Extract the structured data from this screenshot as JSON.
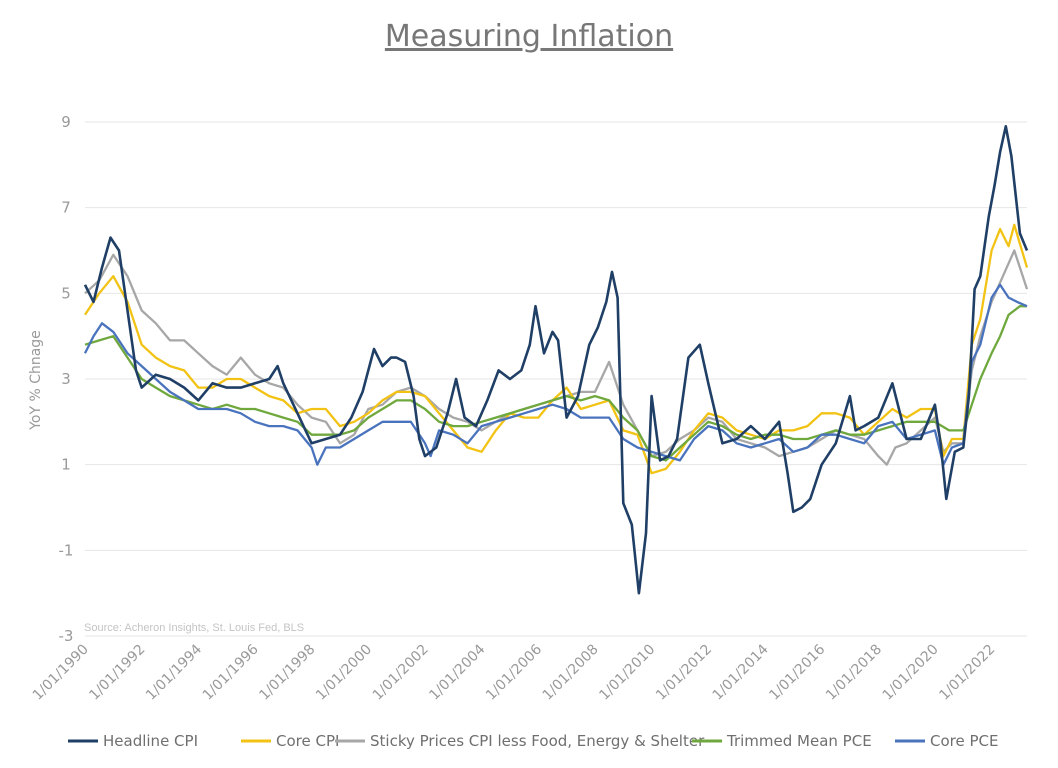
{
  "chart_data": {
    "type": "line",
    "title": "Measuring Inflation",
    "ylabel": "YoY % Chnage",
    "xlabel": "",
    "ylim": [
      -3,
      9
    ],
    "yticks": [
      -3,
      -1,
      1,
      3,
      5,
      7,
      9
    ],
    "xlim": [
      1990,
      2023.25
    ],
    "xticks": [
      "1/01/1990",
      "1/01/1992",
      "1/01/1994",
      "1/01/1996",
      "1/01/1998",
      "1/01/2000",
      "1/01/2002",
      "1/01/2004",
      "1/01/2006",
      "1/01/2008",
      "1/01/2010",
      "1/01/2012",
      "1/01/2014",
      "1/01/2016",
      "1/01/2018",
      "1/01/2020",
      "1/01/2022"
    ],
    "grid": "horizontal",
    "legend_position": "bottom",
    "source_note": "Source: Acheron Insights, St. Louis Fed, BLS",
    "series": [
      {
        "name": "Headline CPI",
        "color": "#1f3f66",
        "x": [
          1990,
          1990.3,
          1990.6,
          1990.9,
          1991.2,
          1991.5,
          1991.8,
          1992,
          1992.5,
          1993,
          1993.5,
          1994,
          1994.5,
          1995,
          1995.5,
          1996,
          1996.5,
          1996.8,
          1997,
          1997.5,
          1998,
          1998.5,
          1999,
          1999.4,
          1999.8,
          2000.2,
          2000.5,
          2000.8,
          2001,
          2001.3,
          2001.6,
          2001.8,
          2002,
          2002.4,
          2002.8,
          2003.1,
          2003.4,
          2003.8,
          2004.2,
          2004.6,
          2005,
          2005.4,
          2005.7,
          2005.9,
          2006.2,
          2006.5,
          2006.7,
          2007,
          2007.4,
          2007.8,
          2008.1,
          2008.4,
          2008.6,
          2008.8,
          2009,
          2009.3,
          2009.55,
          2009.8,
          2010,
          2010.3,
          2010.6,
          2010.9,
          2011.3,
          2011.7,
          2012,
          2012.5,
          2013,
          2013.5,
          2014,
          2014.5,
          2014.8,
          2015,
          2015.3,
          2015.6,
          2016,
          2016.5,
          2017,
          2017.2,
          2017.5,
          2018,
          2018.5,
          2019,
          2019.5,
          2020,
          2020.2,
          2020.4,
          2020.7,
          2021,
          2021.2,
          2021.4,
          2021.6,
          2021.9,
          2022.1,
          2022.3,
          2022.5,
          2022.7,
          2023,
          2023.25
        ],
        "values": [
          5.2,
          4.8,
          5.6,
          6.3,
          6.0,
          4.6,
          3.2,
          2.8,
          3.1,
          3.0,
          2.8,
          2.5,
          2.9,
          2.8,
          2.8,
          2.9,
          3.0,
          3.3,
          2.9,
          2.2,
          1.5,
          1.6,
          1.7,
          2.1,
          2.7,
          3.7,
          3.3,
          3.5,
          3.5,
          3.4,
          2.6,
          1.6,
          1.2,
          1.4,
          2.2,
          3.0,
          2.1,
          1.9,
          2.5,
          3.2,
          3.0,
          3.2,
          3.8,
          4.7,
          3.6,
          4.1,
          3.9,
          2.1,
          2.6,
          3.8,
          4.2,
          4.8,
          5.5,
          4.9,
          0.1,
          -0.4,
          -2.0,
          -0.6,
          2.6,
          1.1,
          1.2,
          1.6,
          3.5,
          3.8,
          2.9,
          1.5,
          1.6,
          1.9,
          1.6,
          2.0,
          0.8,
          -0.1,
          0.0,
          0.2,
          1.0,
          1.5,
          2.6,
          1.8,
          1.9,
          2.1,
          2.9,
          1.6,
          1.6,
          2.4,
          1.5,
          0.2,
          1.3,
          1.4,
          2.6,
          5.1,
          5.4,
          6.8,
          7.5,
          8.3,
          8.9,
          8.2,
          6.4,
          6.0
        ]
      },
      {
        "name": "Core CPI",
        "color": "#f2c314",
        "x": [
          1990,
          1990.5,
          1991,
          1991.5,
          1992,
          1992.5,
          1993,
          1993.5,
          1994,
          1994.5,
          1995,
          1995.5,
          1996,
          1996.5,
          1997,
          1997.5,
          1998,
          1998.5,
          1999,
          1999.5,
          2000,
          2000.5,
          2001,
          2001.5,
          2002,
          2002.5,
          2003,
          2003.5,
          2004,
          2004.5,
          2005,
          2005.5,
          2006,
          2006.5,
          2007,
          2007.5,
          2008,
          2008.5,
          2009,
          2009.5,
          2010,
          2010.5,
          2011,
          2011.5,
          2012,
          2012.5,
          2013,
          2013.5,
          2014,
          2014.5,
          2015,
          2015.5,
          2016,
          2016.5,
          2017,
          2017.5,
          2018,
          2018.5,
          2019,
          2019.5,
          2020,
          2020.3,
          2020.6,
          2021,
          2021.3,
          2021.6,
          2022,
          2022.3,
          2022.6,
          2022.8,
          2023.25
        ],
        "values": [
          4.5,
          5.0,
          5.4,
          4.8,
          3.8,
          3.5,
          3.3,
          3.2,
          2.8,
          2.8,
          3.0,
          3.0,
          2.8,
          2.6,
          2.5,
          2.2,
          2.3,
          2.3,
          1.9,
          2.0,
          2.2,
          2.5,
          2.7,
          2.7,
          2.6,
          2.2,
          1.8,
          1.4,
          1.3,
          1.8,
          2.2,
          2.1,
          2.1,
          2.5,
          2.8,
          2.3,
          2.4,
          2.5,
          1.8,
          1.7,
          0.8,
          0.9,
          1.3,
          1.8,
          2.2,
          2.1,
          1.8,
          1.7,
          1.6,
          1.8,
          1.8,
          1.9,
          2.2,
          2.2,
          2.1,
          1.7,
          2.0,
          2.3,
          2.1,
          2.3,
          2.3,
          1.2,
          1.6,
          1.6,
          3.8,
          4.4,
          6.0,
          6.5,
          6.1,
          6.6,
          5.6
        ]
      },
      {
        "name": "Sticky Prices CPI less Food, Energy & Shelter",
        "color": "#a7a7a7",
        "x": [
          1990,
          1990.5,
          1991,
          1991.5,
          1992,
          1992.5,
          1993,
          1993.5,
          1994,
          1994.5,
          1995,
          1995.5,
          1996,
          1996.5,
          1997,
          1997.5,
          1998,
          1998.5,
          1999,
          1999.5,
          2000,
          2000.5,
          2001,
          2001.5,
          2002,
          2002.5,
          2003,
          2003.5,
          2004,
          2004.5,
          2005,
          2005.5,
          2006,
          2006.5,
          2007,
          2007.5,
          2008,
          2008.5,
          2009,
          2009.5,
          2010,
          2010.5,
          2011,
          2011.5,
          2012,
          2012.5,
          2013,
          2013.5,
          2014,
          2014.5,
          2015,
          2015.5,
          2016,
          2016.5,
          2017,
          2017.5,
          2018,
          2018.3,
          2018.6,
          2019,
          2019.5,
          2020,
          2020.3,
          2020.6,
          2021,
          2021.3,
          2021.6,
          2022,
          2022.4,
          2022.8,
          2023.25
        ],
        "values": [
          5.0,
          5.3,
          5.9,
          5.4,
          4.6,
          4.3,
          3.9,
          3.9,
          3.6,
          3.3,
          3.1,
          3.5,
          3.1,
          2.9,
          2.8,
          2.4,
          2.1,
          2.0,
          1.5,
          1.7,
          2.3,
          2.4,
          2.7,
          2.8,
          2.6,
          2.3,
          2.1,
          2.0,
          1.8,
          2.0,
          2.2,
          2.3,
          2.4,
          2.5,
          2.6,
          2.7,
          2.7,
          3.4,
          2.4,
          1.8,
          1.2,
          1.3,
          1.6,
          1.8,
          2.1,
          2.0,
          1.6,
          1.5,
          1.4,
          1.2,
          1.3,
          1.4,
          1.6,
          1.8,
          1.7,
          1.6,
          1.2,
          1.0,
          1.4,
          1.5,
          1.8,
          2.1,
          1.3,
          1.5,
          1.5,
          3.2,
          4.0,
          4.8,
          5.4,
          6.0,
          5.1
        ]
      },
      {
        "name": "Trimmed Mean PCE",
        "color": "#6fa83d",
        "x": [
          1990,
          1990.5,
          1991,
          1991.5,
          1992,
          1992.5,
          1993,
          1993.5,
          1994,
          1994.5,
          1995,
          1995.5,
          1996,
          1996.5,
          1997,
          1997.5,
          1998,
          1998.5,
          1999,
          1999.5,
          2000,
          2000.5,
          2001,
          2001.5,
          2002,
          2002.5,
          2003,
          2003.5,
          2004,
          2004.5,
          2005,
          2005.5,
          2006,
          2006.5,
          2007,
          2007.5,
          2008,
          2008.5,
          2009,
          2009.5,
          2010,
          2010.5,
          2011,
          2011.5,
          2012,
          2012.5,
          2013,
          2013.5,
          2014,
          2014.5,
          2015,
          2015.5,
          2016,
          2016.5,
          2017,
          2017.5,
          2018,
          2018.5,
          2019,
          2019.5,
          2020,
          2020.5,
          2021,
          2021.3,
          2021.6,
          2022,
          2022.3,
          2022.6,
          2023,
          2023.25
        ],
        "values": [
          3.8,
          3.9,
          4.0,
          3.5,
          3.0,
          2.8,
          2.6,
          2.5,
          2.4,
          2.3,
          2.4,
          2.3,
          2.3,
          2.2,
          2.1,
          2.0,
          1.7,
          1.7,
          1.7,
          1.8,
          2.1,
          2.3,
          2.5,
          2.5,
          2.3,
          2.0,
          1.9,
          1.9,
          2.0,
          2.1,
          2.2,
          2.3,
          2.4,
          2.5,
          2.6,
          2.5,
          2.6,
          2.5,
          2.1,
          1.8,
          1.2,
          1.1,
          1.4,
          1.7,
          2.0,
          1.9,
          1.7,
          1.6,
          1.7,
          1.7,
          1.6,
          1.6,
          1.7,
          1.8,
          1.7,
          1.7,
          1.8,
          1.9,
          2.0,
          2.0,
          2.0,
          1.8,
          1.8,
          2.4,
          3.0,
          3.6,
          4.0,
          4.5,
          4.7,
          4.7
        ]
      },
      {
        "name": "Core PCE",
        "color": "#4a73bd",
        "x": [
          1990,
          1990.3,
          1990.6,
          1991,
          1991.5,
          1992,
          1992.5,
          1993,
          1993.5,
          1994,
          1994.5,
          1995,
          1995.5,
          1996,
          1996.5,
          1997,
          1997.5,
          1998,
          1998.2,
          1998.5,
          1999,
          1999.5,
          2000,
          2000.5,
          2001,
          2001.5,
          2002,
          2002.2,
          2002.5,
          2003,
          2003.5,
          2004,
          2004.5,
          2005,
          2005.5,
          2006,
          2006.5,
          2007,
          2007.5,
          2008,
          2008.5,
          2009,
          2009.5,
          2010,
          2010.5,
          2011,
          2011.5,
          2012,
          2012.5,
          2013,
          2013.5,
          2014,
          2014.5,
          2015,
          2015.5,
          2016,
          2016.5,
          2017,
          2017.5,
          2018,
          2018.5,
          2019,
          2019.5,
          2020,
          2020.3,
          2020.6,
          2021,
          2021.3,
          2021.6,
          2022,
          2022.3,
          2022.6,
          2022.9,
          2023.25
        ],
        "values": [
          3.6,
          4.0,
          4.3,
          4.1,
          3.6,
          3.3,
          3.0,
          2.7,
          2.5,
          2.3,
          2.3,
          2.3,
          2.2,
          2.0,
          1.9,
          1.9,
          1.8,
          1.4,
          1.0,
          1.4,
          1.4,
          1.6,
          1.8,
          2.0,
          2.0,
          2.0,
          1.5,
          1.2,
          1.8,
          1.7,
          1.5,
          1.9,
          2.0,
          2.1,
          2.2,
          2.3,
          2.4,
          2.3,
          2.1,
          2.1,
          2.1,
          1.6,
          1.4,
          1.3,
          1.2,
          1.1,
          1.6,
          1.9,
          1.8,
          1.5,
          1.4,
          1.5,
          1.6,
          1.3,
          1.4,
          1.7,
          1.7,
          1.6,
          1.5,
          1.9,
          2.0,
          1.6,
          1.7,
          1.8,
          1.0,
          1.4,
          1.5,
          3.4,
          3.8,
          4.9,
          5.2,
          4.9,
          4.8,
          4.7
        ]
      }
    ]
  }
}
